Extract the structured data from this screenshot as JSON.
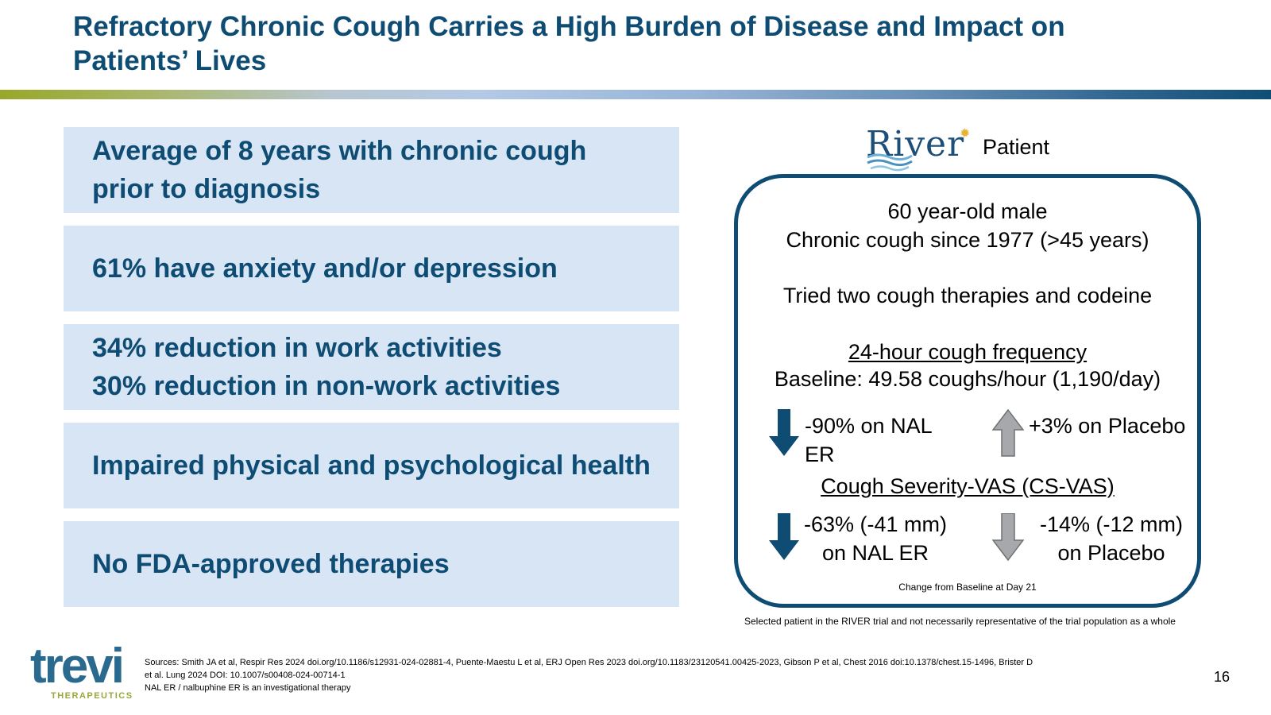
{
  "slide": {
    "title_lines": [
      "Refractory Chronic Cough Carries a High Burden of Disease and Impact on",
      "Patients’ Lives"
    ],
    "page_number": "16"
  },
  "stats": [
    {
      "lines": [
        "Average of 8 years with chronic cough",
        "prior to diagnosis"
      ]
    },
    {
      "lines": [
        "61% have anxiety and/or depression"
      ]
    },
    {
      "lines": [
        "34% reduction in work activities",
        "30% reduction in non-work activities"
      ]
    },
    {
      "lines": [
        "Impaired physical and psychological health"
      ]
    },
    {
      "lines": [
        "No FDA-approved therapies"
      ]
    }
  ],
  "patient_card": {
    "logo_text": "River",
    "logo_icon": "sun-icon",
    "header_label": "Patient",
    "profile_line1": "60 year-old male",
    "profile_line2": "Chronic cough since 1977 (>45 years)",
    "therapies": "Tried two cough therapies and codeine",
    "frequency_heading": "24-hour cough frequency",
    "baseline": "Baseline: 49.58 coughs/hour (1,190/day)",
    "freq_nal": "-90% on NAL ER",
    "freq_placebo": "+3% on Placebo",
    "severity_heading": "Cough Severity-VAS (CS-VAS)",
    "sev_nal_line1": "-63% (-41 mm)",
    "sev_nal_line2": "on NAL ER",
    "sev_placebo_line1": "-14% (-12 mm)",
    "sev_placebo_line2": "on Placebo",
    "footnote": "Change from Baseline at Day 21",
    "colors": {
      "nal_arrow": "#0e4c74",
      "placebo_arrow": "#a6a8ab",
      "border": "#0e4c74"
    }
  },
  "disclaimer": "Selected patient in the RIVER trial and not necessarily representative of the trial population as a whole",
  "footer": {
    "logo_text": "trevi",
    "logo_subtext": "THERAPEUTICS",
    "sources_line1": "Sources: Smith JA et al, Respir Res 2024 doi.org/10.1186/s12931-024-02881-4, Puente-Maestu L et al, ERJ Open Res 2023 doi.org/10.1183/23120541.00425-2023, Gibson P et al, Chest 2016 doi:10.1378/chest.15-1496, Brister D",
    "sources_line2": "et al. Lung 2024 DOI: 10.1007/s00408-024-00714-1",
    "sources_line3": "NAL ER / nalbuphine ER is an investigational therapy"
  },
  "theme": {
    "title_color": "#0e4c74",
    "box_fill": "#d7e5f4",
    "accent_green": "#9aa63b"
  }
}
